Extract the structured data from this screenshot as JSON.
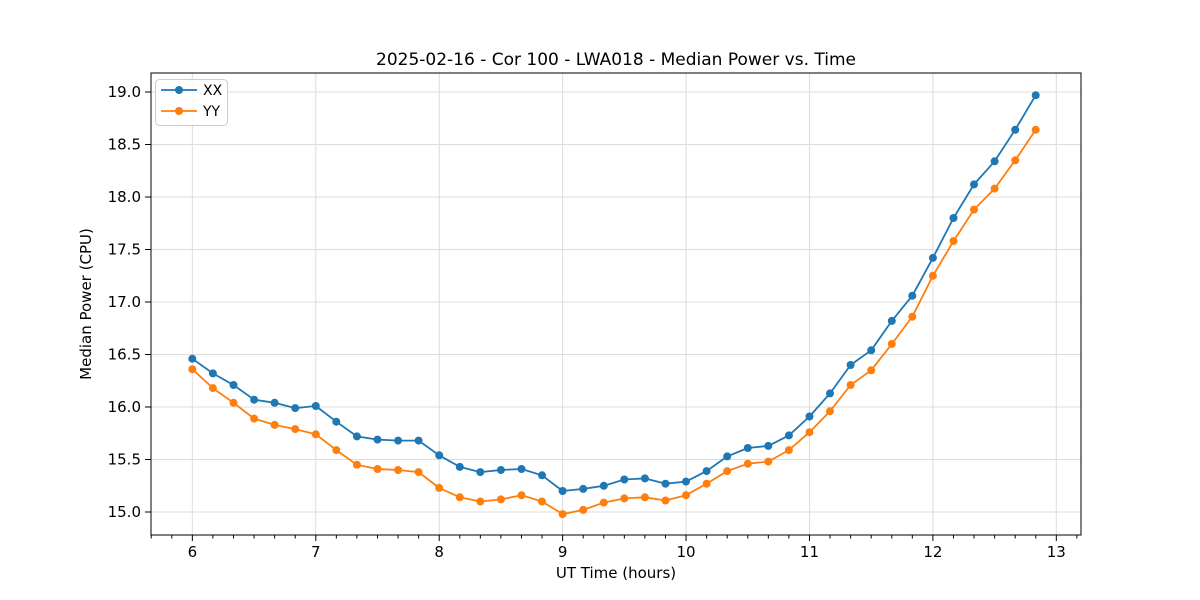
{
  "chart_data": {
    "type": "line",
    "title": "2025-02-16 - Cor 100 - LWA018 - Median Power vs. Time",
    "xlabel": "UT Time (hours)",
    "ylabel": "Median Power (CPU)",
    "x": [
      6.0,
      6.1667,
      6.3333,
      6.5,
      6.6667,
      6.8333,
      7.0,
      7.1667,
      7.3333,
      7.5,
      7.6667,
      7.8333,
      8.0,
      8.1667,
      8.3333,
      8.5,
      8.6667,
      8.8333,
      9.0,
      9.1667,
      9.3333,
      9.5,
      9.6667,
      9.8333,
      10.0,
      10.1667,
      10.3333,
      10.5,
      10.6667,
      10.8333,
      11.0,
      11.1667,
      11.3333,
      11.5,
      11.6667,
      11.8333,
      12.0,
      12.1667,
      12.3333,
      12.5,
      12.6667,
      12.8333
    ],
    "series": [
      {
        "name": "XX",
        "color": "#1f77b4",
        "values": [
          16.46,
          16.32,
          16.21,
          16.07,
          16.04,
          15.99,
          16.01,
          15.86,
          15.72,
          15.69,
          15.68,
          15.68,
          15.54,
          15.43,
          15.38,
          15.4,
          15.41,
          15.35,
          15.2,
          15.22,
          15.25,
          15.31,
          15.32,
          15.27,
          15.29,
          15.39,
          15.53,
          15.61,
          15.63,
          15.73,
          15.91,
          16.13,
          16.4,
          16.54,
          16.82,
          17.06,
          17.42,
          17.8,
          18.12,
          18.34,
          18.64,
          18.97
        ]
      },
      {
        "name": "YY",
        "color": "#ff7f0e",
        "values": [
          16.36,
          16.18,
          16.04,
          15.89,
          15.83,
          15.79,
          15.74,
          15.59,
          15.45,
          15.41,
          15.4,
          15.38,
          15.23,
          15.14,
          15.1,
          15.12,
          15.16,
          15.1,
          14.98,
          15.02,
          15.09,
          15.13,
          15.14,
          15.11,
          15.16,
          15.27,
          15.39,
          15.46,
          15.48,
          15.59,
          15.76,
          15.96,
          16.21,
          16.35,
          16.6,
          16.86,
          17.25,
          17.58,
          17.88,
          18.08,
          18.35,
          18.64
        ]
      }
    ],
    "xlim": [
      5.665,
      13.2
    ],
    "ylim": [
      14.781,
      19.181
    ],
    "xticks": [
      6,
      7,
      8,
      9,
      10,
      11,
      12,
      13
    ],
    "yticks": [
      15.0,
      15.5,
      16.0,
      16.5,
      17.0,
      17.5,
      18.0,
      18.5,
      19.0
    ],
    "x_minor_step": 0.166667,
    "grid": true,
    "legend_position": "upper left",
    "grid_color": "#dcdcdc",
    "spine_color": "#000000",
    "background": "#ffffff"
  }
}
